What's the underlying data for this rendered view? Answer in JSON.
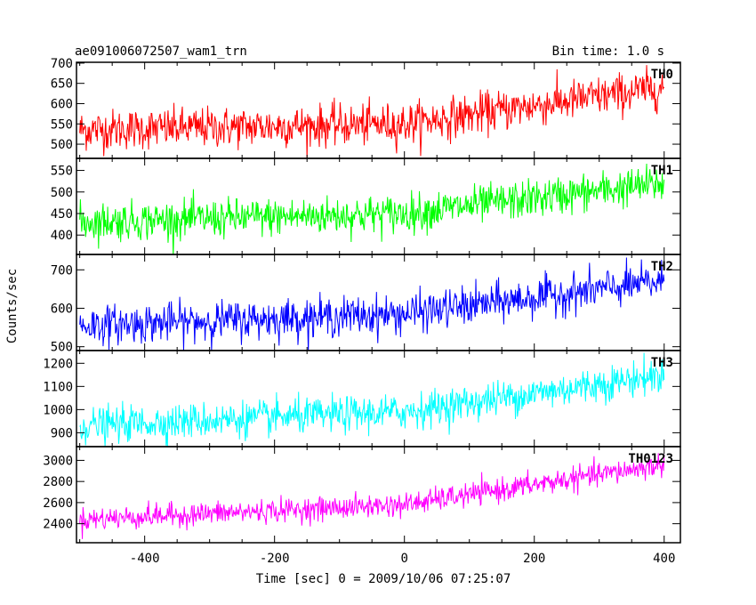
{
  "header": {
    "title": "ae091006072507_wam1_trn",
    "bin_time": "Bin time: 1.0 s"
  },
  "chart_data": {
    "type": "line",
    "title": "ae091006072507_wam1_trn",
    "subtitle": "Bin time: 1.0 s",
    "xlabel": "Time [sec] 0 = 2009/10/06 07:25:07",
    "ylabel": "Counts/sec",
    "xlim": [
      -505,
      425
    ],
    "x_ticks": [
      -400,
      -200,
      0,
      200,
      400
    ],
    "x_range_data": [
      -500,
      400
    ],
    "bin_time": 1.0,
    "grid": false,
    "panels": [
      {
        "name": "TH0",
        "color": "#ff0000",
        "ylim": [
          465,
          702
        ],
        "yticks": [
          500,
          550,
          600,
          650,
          700
        ],
        "trend": [
          {
            "x": -500,
            "y": 535
          },
          {
            "x": 0,
            "y": 550
          },
          {
            "x": 400,
            "y": 640
          }
        ],
        "noise_sd": 25
      },
      {
        "name": "TH1",
        "color": "#00ff00",
        "ylim": [
          355,
          578
        ],
        "yticks": [
          400,
          450,
          500,
          550
        ],
        "trend": [
          {
            "x": -500,
            "y": 430
          },
          {
            "x": 0,
            "y": 450
          },
          {
            "x": 400,
            "y": 520
          }
        ],
        "noise_sd": 22
      },
      {
        "name": "TH2",
        "color": "#0000ff",
        "ylim": [
          490,
          740
        ],
        "yticks": [
          500,
          600,
          700
        ],
        "trend": [
          {
            "x": -500,
            "y": 555
          },
          {
            "x": 0,
            "y": 585
          },
          {
            "x": 400,
            "y": 670
          }
        ],
        "noise_sd": 25
      },
      {
        "name": "TH3",
        "color": "#00ffff",
        "ylim": [
          840,
          1255
        ],
        "yticks": [
          900,
          1000,
          1100,
          1200
        ],
        "trend": [
          {
            "x": -500,
            "y": 930
          },
          {
            "x": 0,
            "y": 990
          },
          {
            "x": 400,
            "y": 1150
          }
        ],
        "noise_sd": 38
      },
      {
        "name": "TH0123",
        "color": "#ff00ff",
        "ylim": [
          2220,
          3130
        ],
        "yticks": [
          2400,
          2600,
          2800,
          3000
        ],
        "trend": [
          {
            "x": -500,
            "y": 2440
          },
          {
            "x": 0,
            "y": 2580
          },
          {
            "x": 400,
            "y": 2960
          }
        ],
        "noise_sd": 55
      }
    ]
  }
}
